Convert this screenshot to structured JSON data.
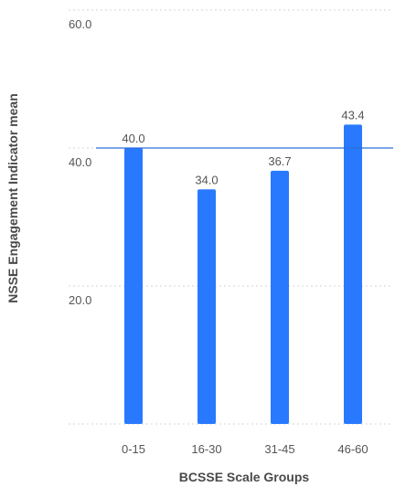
{
  "chart_data": {
    "type": "bar",
    "categories": [
      "0-15",
      "16-30",
      "31-45",
      "46-60"
    ],
    "values": [
      40.0,
      34.0,
      36.7,
      43.4
    ],
    "value_labels": [
      "40.0",
      "34.0",
      "36.7",
      "43.4"
    ],
    "xlabel": "BCSSE Scale Groups",
    "ylabel": "NSSE Engagement Indicator mean",
    "ylim": [
      0,
      60
    ],
    "yticks": [
      20,
      40,
      60
    ],
    "ytick_labels": [
      "20.0",
      "40.0",
      "60.0"
    ],
    "reference_line": 40.0,
    "grid": true,
    "legend": "none",
    "colors": {
      "bar": "#2979ff",
      "reference_line": "#2a6fd6",
      "grid": "#d6d6d6",
      "text": "#555555",
      "axis_title": "#4a4a4a"
    }
  }
}
